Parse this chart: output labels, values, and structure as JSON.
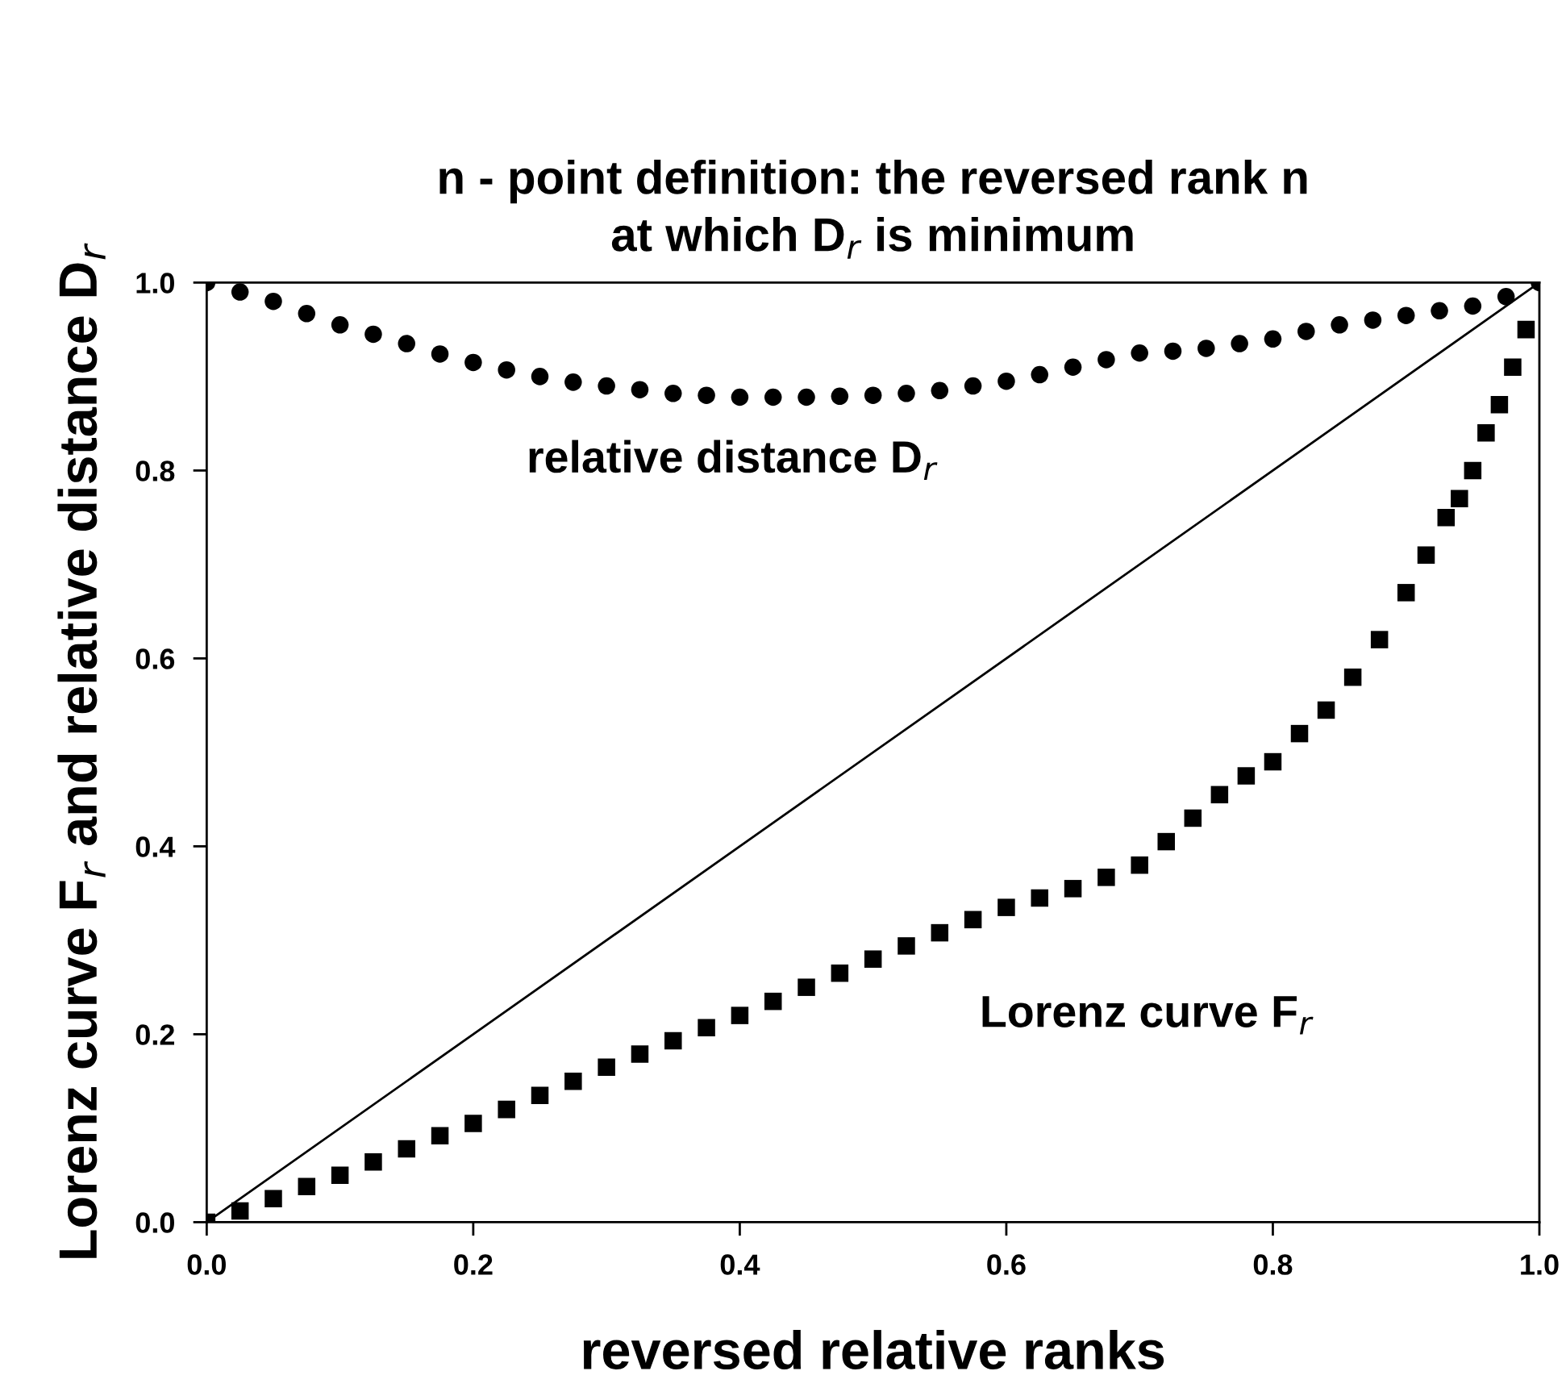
{
  "chart_data": {
    "type": "scatter",
    "title": "n - point definition: the reversed rank n\nat which D$_{r}$ is minimum",
    "xlabel": "reversed relative ranks",
    "ylabel": "Lorenz curve F$_{r}$ and relative distance D$_{r}$",
    "xlim": [
      0.0,
      1.0
    ],
    "ylim": [
      0.0,
      1.0
    ],
    "xticks": [
      {
        "value": 0,
        "label": "0.0"
      },
      0.2,
      0.4,
      0.6,
      0.8,
      {
        "value": 1,
        "label": "1.0"
      }
    ],
    "yticks": [
      {
        "value": 0,
        "label": "0.0"
      },
      0.2,
      0.4,
      0.6,
      0.8,
      {
        "value": 1,
        "label": "1.0"
      }
    ],
    "grid": false,
    "legend": false,
    "series": [
      {
        "name": "relative distance D$_{r}$",
        "marker": "circle",
        "color": "#000000",
        "x": [
          0.0,
          0.025,
          0.05,
          0.075,
          0.1,
          0.125,
          0.15,
          0.175,
          0.2,
          0.225,
          0.25,
          0.275,
          0.3,
          0.325,
          0.35,
          0.375,
          0.4,
          0.425,
          0.45,
          0.475,
          0.5,
          0.525,
          0.55,
          0.575,
          0.6,
          0.625,
          0.65,
          0.675,
          0.7,
          0.725,
          0.75,
          0.775,
          0.8,
          0.825,
          0.85,
          0.875,
          0.9,
          0.925,
          0.95,
          0.975,
          1.0
        ],
        "values": [
          1.0,
          0.99,
          0.98,
          0.967,
          0.955,
          0.945,
          0.935,
          0.924,
          0.915,
          0.907,
          0.9,
          0.894,
          0.89,
          0.886,
          0.882,
          0.88,
          0.878,
          0.878,
          0.878,
          0.879,
          0.88,
          0.882,
          0.885,
          0.89,
          0.895,
          0.902,
          0.91,
          0.918,
          0.925,
          0.927,
          0.93,
          0.935,
          0.94,
          0.948,
          0.955,
          0.96,
          0.965,
          0.97,
          0.975,
          0.985,
          1.0
        ]
      },
      {
        "name": "Lorenz curve F$_{r}$",
        "marker": "square",
        "color": "#000000",
        "x": [
          0.0,
          0.025,
          0.05,
          0.075,
          0.1,
          0.125,
          0.15,
          0.175,
          0.2,
          0.225,
          0.25,
          0.275,
          0.3,
          0.325,
          0.35,
          0.375,
          0.4,
          0.425,
          0.45,
          0.475,
          0.5,
          0.525,
          0.55,
          0.575,
          0.6,
          0.625,
          0.65,
          0.675,
          0.7,
          0.72,
          0.74,
          0.76,
          0.78,
          0.8,
          0.82,
          0.84,
          0.86,
          0.88,
          0.9,
          0.915,
          0.93,
          0.94,
          0.95,
          0.96,
          0.97,
          0.98,
          0.99
        ],
        "values": [
          0.0,
          0.012,
          0.025,
          0.038,
          0.05,
          0.064,
          0.078,
          0.092,
          0.105,
          0.12,
          0.135,
          0.15,
          0.165,
          0.179,
          0.193,
          0.207,
          0.22,
          0.235,
          0.25,
          0.265,
          0.28,
          0.294,
          0.308,
          0.322,
          0.335,
          0.345,
          0.355,
          0.367,
          0.38,
          0.405,
          0.43,
          0.455,
          0.475,
          0.49,
          0.52,
          0.545,
          0.58,
          0.62,
          0.67,
          0.71,
          0.75,
          0.77,
          0.8,
          0.84,
          0.87,
          0.91,
          0.95
        ]
      },
      {
        "type": "line",
        "line_style": "solid",
        "color": "#000000",
        "x": [
          0.0,
          1.0
        ],
        "values": [
          0.0,
          1.0
        ]
      }
    ]
  }
}
